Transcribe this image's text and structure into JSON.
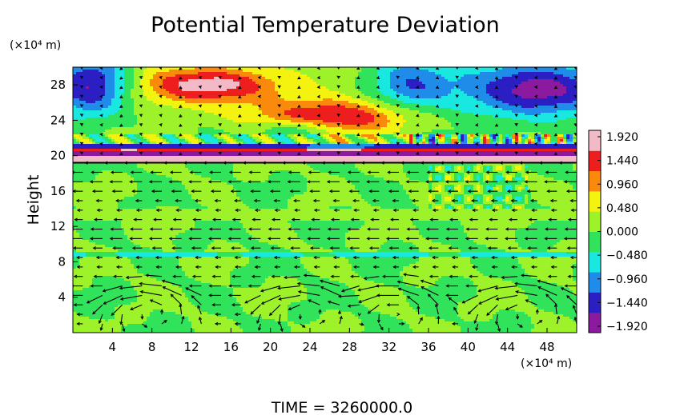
{
  "chart_data": {
    "type": "heatmap",
    "title": "Potential Temperature Deviation",
    "ylabel": "Height",
    "x_unit_label": "(×10⁴ m)",
    "y_unit_label": "(×10⁴ m)",
    "x_ticks": [
      "4",
      "8",
      "12",
      "16",
      "20",
      "24",
      "28",
      "32",
      "36",
      "40",
      "44",
      "48"
    ],
    "y_ticks": [
      "4",
      "8",
      "12",
      "16",
      "20",
      "24",
      "28"
    ],
    "xlim": [
      0,
      51
    ],
    "ylim": [
      0,
      30
    ],
    "colorbar": {
      "labels": [
        "1.920",
        "1.440",
        "0.960",
        "0.480",
        "0.000",
        "−0.480",
        "−0.960",
        "−1.440",
        "−1.920"
      ],
      "range": [
        -1.92,
        1.92
      ]
    },
    "overlay": "wind vectors (arrows)",
    "tropopause_height": 19.2,
    "features": [
      {
        "x": 14,
        "y": 28,
        "value": 1.9,
        "rx": 7,
        "ry": 2.2
      },
      {
        "x": 26,
        "y": 24.3,
        "value": 1.5,
        "rx": 9,
        "ry": 2.0
      },
      {
        "x": 2,
        "y": 28,
        "value": -1.7,
        "rx": 4,
        "ry": 3.5
      },
      {
        "x": 47,
        "y": 27.5,
        "value": -1.9,
        "rx": 7,
        "ry": 3.2
      },
      {
        "x": 34,
        "y": 28,
        "value": -1.0,
        "rx": 4,
        "ry": 3
      },
      {
        "x": 23,
        "y": 23,
        "value": -1.0,
        "rx": 4,
        "ry": 1.2
      }
    ]
  },
  "footer": {
    "time_label": "TIME = 3260000.0"
  },
  "colors": {
    "colormap": [
      "#8b1a9e",
      "#2b1fc4",
      "#1e8ce8",
      "#19e8e0",
      "#31e35a",
      "#9ef22a",
      "#f4f20f",
      "#fa8a0c",
      "#ee1e1e",
      "#f2b9c7"
    ]
  }
}
